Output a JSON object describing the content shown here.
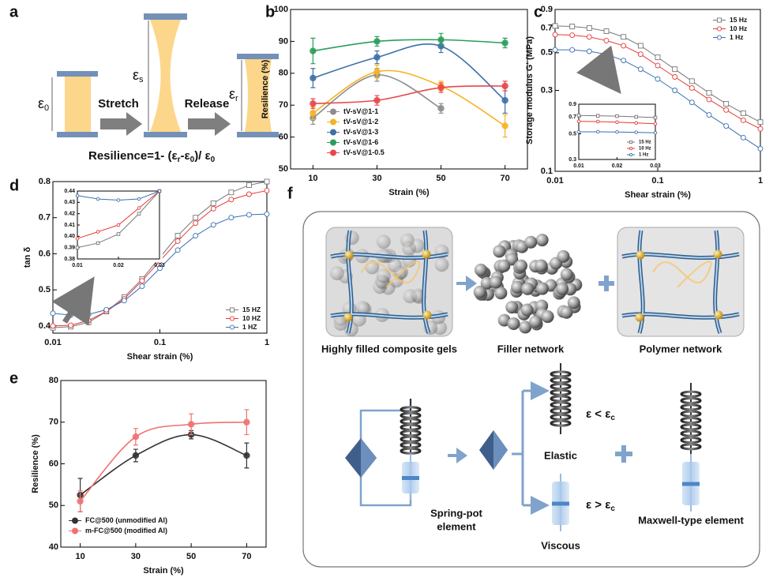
{
  "panel_labels": [
    "a",
    "b",
    "c",
    "d",
    "e",
    "f"
  ],
  "panel_a": {
    "strain_labels": [
      {
        "symbol": "ε",
        "sub": "0"
      },
      {
        "symbol": "ε",
        "sub": "s"
      },
      {
        "symbol": "ε",
        "sub": "r"
      }
    ],
    "steps": [
      "Stretch",
      "Release"
    ],
    "formula": [
      {
        "text": "Resilience=1- (ε"
      },
      {
        "sub": "r"
      },
      {
        "text": "-ε"
      },
      {
        "sub": "0"
      },
      {
        "text": ")/ ε"
      },
      {
        "sub": "0"
      }
    ]
  },
  "chart_data": [
    {
      "type": "line",
      "x": [
        10,
        30,
        50,
        70
      ],
      "xlim": [
        3,
        77
      ],
      "xticks": [
        10,
        30,
        50,
        70
      ],
      "ylim": [
        50,
        100
      ],
      "yticks": [
        50,
        60,
        70,
        80,
        90,
        100
      ],
      "xlabel": "Strain (%)",
      "ylabel": "Resilience (%)",
      "smooth": true,
      "legend": "lower left",
      "series": [
        {
          "name": "tV-sV@1-1",
          "color": "#8c8c8c",
          "marker": "filled-circle",
          "values": [
            66,
            79.5,
            69,
            null
          ],
          "errors": [
            2,
            2,
            1.5,
            null
          ]
        },
        {
          "name": "tV-sV@1-2",
          "color": "#f5b323",
          "marker": "filled-circle",
          "values": [
            67.5,
            80.5,
            76,
            63.5
          ],
          "errors": [
            2,
            2,
            1.5,
            3.5
          ]
        },
        {
          "name": "tV-sV@1-3",
          "color": "#3d6fa8",
          "marker": "filled-circle",
          "values": [
            78.5,
            85,
            88.5,
            71.5
          ],
          "errors": [
            3,
            2,
            2,
            4
          ]
        },
        {
          "name": "tV-sV@1-6",
          "color": "#2a9d5c",
          "marker": "filled-circle",
          "values": [
            87,
            90,
            90.5,
            89.5
          ],
          "errors": [
            4,
            1.5,
            2,
            1.5
          ]
        },
        {
          "name": "tV-sV@1-0.5",
          "color": "#e8474a",
          "marker": "filled-circle",
          "values": [
            70.5,
            71.5,
            75.5,
            76
          ],
          "errors": [
            1.5,
            1.5,
            1.5,
            1.5
          ]
        }
      ]
    },
    {
      "type": "line",
      "xscale": "log",
      "yscale": "log",
      "x": [
        0.01,
        0.01468,
        0.02154,
        0.03162,
        0.04642,
        0.06813,
        0.1,
        0.1468,
        0.2154,
        0.3162,
        0.4642,
        0.6813,
        1
      ],
      "xlim": [
        0.01,
        1
      ],
      "xticks": [
        0.01,
        0.1,
        1
      ],
      "ylim": [
        0.1,
        0.9
      ],
      "yticks": [
        0.1,
        0.3,
        0.5,
        0.7,
        0.9
      ],
      "xlabel": "Shear strain (%)",
      "ylabel": "Storage modulus G' (MPa)",
      "legend": "upper right",
      "series": [
        {
          "name": "15 Hz",
          "color": "#777777",
          "marker": "open-square",
          "values": [
            0.72,
            0.715,
            0.7,
            0.67,
            0.62,
            0.55,
            0.47,
            0.4,
            0.34,
            0.29,
            0.25,
            0.22,
            0.195
          ]
        },
        {
          "name": "10 Hz",
          "color": "#e53935",
          "marker": "open-circle",
          "values": [
            0.64,
            0.635,
            0.62,
            0.59,
            0.55,
            0.49,
            0.42,
            0.36,
            0.31,
            0.265,
            0.23,
            0.2,
            0.178
          ]
        },
        {
          "name": "1 Hz",
          "color": "#3a6fb0",
          "marker": "open-circle",
          "values": [
            0.52,
            0.52,
            0.51,
            0.49,
            0.45,
            0.4,
            0.35,
            0.3,
            0.255,
            0.215,
            0.185,
            0.158,
            0.136
          ]
        }
      ]
    },
    {
      "type": "line",
      "yscale": "log",
      "x": [
        0.01,
        0.015,
        0.02,
        0.025,
        0.03
      ],
      "xlim": [
        0.01,
        0.03
      ],
      "xticks": [
        0.01,
        0.02,
        0.03
      ],
      "ylim": [
        0.3,
        0.9
      ],
      "yticks": [
        0.3,
        0.5,
        0.7,
        0.9
      ],
      "legend": "lower right",
      "series": [
        {
          "name": "15 Hz",
          "color": "#777777",
          "marker": "open-square",
          "values": [
            0.72,
            0.715,
            0.71,
            0.7,
            0.69
          ]
        },
        {
          "name": "10 Hz",
          "color": "#e53935",
          "marker": "open-circle",
          "values": [
            0.64,
            0.637,
            0.63,
            0.62,
            0.61
          ]
        },
        {
          "name": "1 Hz",
          "color": "#3a6fb0",
          "marker": "open-circle",
          "values": [
            0.52,
            0.52,
            0.518,
            0.515,
            0.51
          ]
        }
      ]
    },
    {
      "type": "line",
      "xscale": "log",
      "x": [
        0.01,
        0.01468,
        0.02154,
        0.03162,
        0.04642,
        0.06813,
        0.1,
        0.1468,
        0.2154,
        0.3162,
        0.4642,
        0.6813,
        1
      ],
      "xlim": [
        0.01,
        1
      ],
      "xticks": [
        0.01,
        0.1,
        1
      ],
      "ylim": [
        0.38,
        0.8
      ],
      "yticks": [
        0.4,
        0.5,
        0.6,
        0.7,
        0.8
      ],
      "xlabel": "Shear strain (%)",
      "ylabel": "tan δ",
      "legend": "lower right",
      "series": [
        {
          "name": "15 HZ",
          "color": "#777777",
          "marker": "open-square",
          "values": [
            0.395,
            0.398,
            0.41,
            0.44,
            0.48,
            0.53,
            0.59,
            0.65,
            0.7,
            0.74,
            0.77,
            0.79,
            0.8
          ]
        },
        {
          "name": "10 HZ",
          "color": "#e53935",
          "marker": "open-circle",
          "values": [
            0.4,
            0.402,
            0.415,
            0.44,
            0.475,
            0.525,
            0.58,
            0.635,
            0.685,
            0.725,
            0.75,
            0.765,
            0.775
          ]
        },
        {
          "name": "1 HZ",
          "color": "#3a6fb0",
          "marker": "open-circle",
          "values": [
            0.435,
            0.43,
            0.432,
            0.445,
            0.47,
            0.51,
            0.56,
            0.61,
            0.65,
            0.68,
            0.7,
            0.708,
            0.71
          ]
        }
      ]
    },
    {
      "type": "line",
      "x": [
        0.01,
        0.015,
        0.02,
        0.025,
        0.03
      ],
      "xlim": [
        0.01,
        0.03
      ],
      "xticks": [
        0.01,
        0.02,
        0.03
      ],
      "ylim": [
        0.38,
        0.44
      ],
      "yticks": [
        0.38,
        0.39,
        {
          "value": 0.4,
          "label": "0.40"
        },
        0.41,
        0.42,
        0.43,
        0.44
      ],
      "series": [
        {
          "name": "15 HZ",
          "color": "#777777",
          "marker": "open-square",
          "values": [
            0.39,
            0.394,
            0.402,
            0.42,
            0.44
          ]
        },
        {
          "name": "10 HZ",
          "color": "#e53935",
          "marker": "open-circle",
          "values": [
            0.398,
            0.404,
            0.41,
            0.425,
            0.44
          ]
        },
        {
          "name": "1 HZ",
          "color": "#3a6fb0",
          "marker": "open-circle",
          "values": [
            0.436,
            0.433,
            0.432,
            0.433,
            0.44
          ]
        }
      ]
    },
    {
      "type": "line",
      "x": [
        10,
        30,
        50,
        70
      ],
      "xlim": [
        3,
        77
      ],
      "xticks": [
        10,
        30,
        50,
        70
      ],
      "ylim": [
        40,
        80
      ],
      "yticks": [
        40,
        50,
        60,
        70,
        80
      ],
      "xlabel": "Strain (%)",
      "ylabel": "Resilience (%)",
      "smooth": true,
      "legend": "lower left",
      "series": [
        {
          "name": "FC@500 (unmodified Al)",
          "color": "#333333",
          "marker": "filled-circle",
          "values": [
            52.5,
            62,
            67,
            62
          ],
          "errors": [
            4,
            1.5,
            1,
            3
          ]
        },
        {
          "name": "m-FC@500 (modified Al)",
          "color": "#f07070",
          "marker": "filled-circle",
          "values": [
            51,
            66.5,
            69.5,
            70
          ],
          "errors": [
            2.5,
            2,
            2.5,
            3
          ]
        }
      ]
    }
  ],
  "panel_f": {
    "top_labels": [
      "Highly filled composite gels",
      "Filler network",
      "Polymer network"
    ],
    "conditions": [
      {
        "text": "ε < ε",
        "sub": "c",
        "state": "Elastic"
      },
      {
        "text": "ε > ε",
        "sub": "c",
        "state": "Viscous"
      }
    ],
    "element_labels": [
      "Spring-pot",
      "element"
    ],
    "maxwell_label": "Maxwell-type element"
  }
}
